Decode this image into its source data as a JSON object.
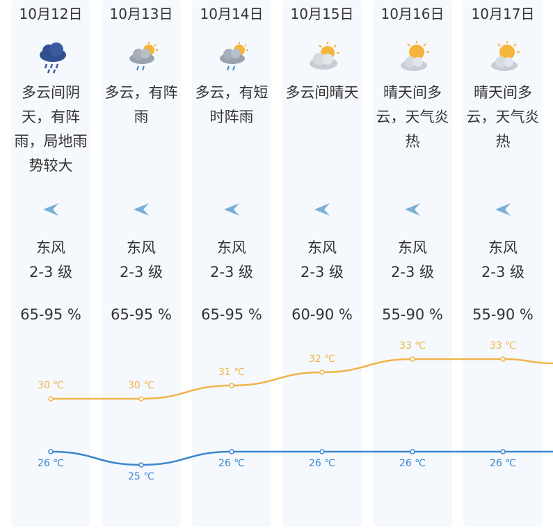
{
  "days": [
    {
      "date": "10月12日",
      "icon": "heavy-rain-icon",
      "desc": "多云间阴天，有阵雨，局地雨势较大",
      "wind_dir": "东风",
      "wind_level": "2-3 级",
      "humidity": "65-95 %"
    },
    {
      "date": "10月13日",
      "icon": "cloud-sun-rain-icon",
      "desc": "多云，有阵雨",
      "wind_dir": "东风",
      "wind_level": "2-3 级",
      "humidity": "65-95 %"
    },
    {
      "date": "10月14日",
      "icon": "cloud-sun-rain-icon",
      "desc": "多云，有短时阵雨",
      "wind_dir": "东风",
      "wind_level": "2-3 级",
      "humidity": "65-95 %"
    },
    {
      "date": "10月15日",
      "icon": "partly-cloudy-icon",
      "desc": "多云间晴天",
      "wind_dir": "东风",
      "wind_level": "2-3 级",
      "humidity": "60-90 %"
    },
    {
      "date": "10月16日",
      "icon": "sunny-cloudy-icon",
      "desc": "晴天间多云，天气炎热",
      "wind_dir": "东风",
      "wind_level": "2-3 级",
      "humidity": "55-90 %"
    },
    {
      "date": "10月17日",
      "icon": "sunny-cloudy-icon",
      "desc": "晴天间多云，天气炎热",
      "wind_dir": "东风",
      "wind_level": "2-3 级",
      "humidity": "55-90 %"
    }
  ],
  "chart_data": {
    "type": "line",
    "categories": [
      "10月12日",
      "10月13日",
      "10月14日",
      "10月15日",
      "10月16日",
      "10月17日"
    ],
    "series": [
      {
        "values": [
          30,
          30,
          31,
          32,
          33,
          33
        ],
        "labels": [
          "30 ℃",
          "30 ℃",
          "31 ℃",
          "32 ℃",
          "33 ℃",
          "33 ℃"
        ],
        "color": "#f0b44a"
      },
      {
        "values": [
          26,
          25,
          26,
          26,
          26,
          26
        ],
        "labels": [
          "26 ℃",
          "25 ℃",
          "26 ℃",
          "26 ℃",
          "26 ℃",
          "26 ℃"
        ],
        "color": "#3a86cf"
      }
    ]
  },
  "colors": {
    "high": "#f0b44a",
    "low": "#3a86cf",
    "wind_arrow": "#7aaed6",
    "column_bg": "#f5f8fc"
  }
}
